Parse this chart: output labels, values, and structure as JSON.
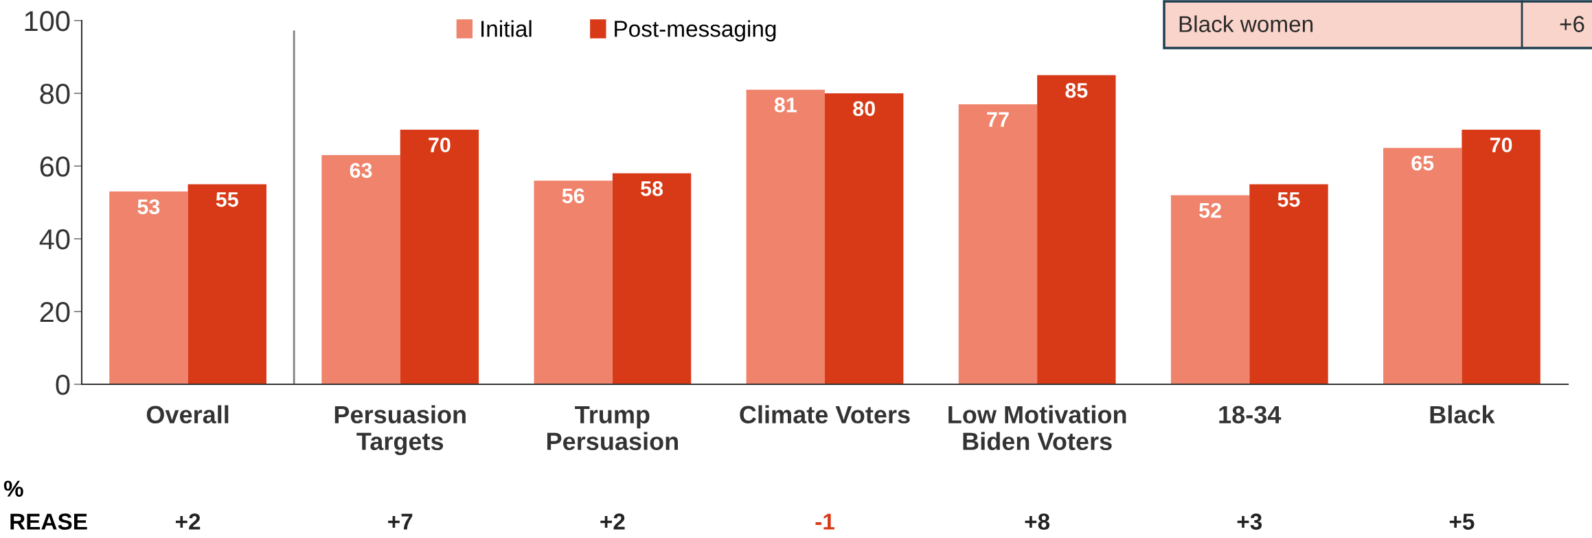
{
  "chart_data": {
    "type": "bar",
    "categories": [
      "Overall",
      "Persuasion\nTargets",
      "Trump\nPersuasion",
      "Climate Voters",
      "Low Motivation\nBiden Voters",
      "18-34",
      "Black"
    ],
    "series": [
      {
        "name": "Initial",
        "color": "#f0836b",
        "values": [
          53,
          63,
          56,
          81,
          77,
          52,
          65
        ]
      },
      {
        "name": "Post-messaging",
        "color": "#d83a17",
        "values": [
          55,
          70,
          58,
          80,
          85,
          55,
          70
        ]
      }
    ],
    "ylim": [
      0,
      100
    ],
    "yticks": [
      0,
      20,
      40,
      60,
      80,
      100
    ],
    "data_labels": true,
    "legend": "top",
    "grid": false,
    "annotations": [
      "%",
      "REASE",
      "+2",
      "+7",
      "+2",
      "-1",
      "+8",
      "+3",
      "+5",
      "Black women",
      "+6"
    ]
  }
}
